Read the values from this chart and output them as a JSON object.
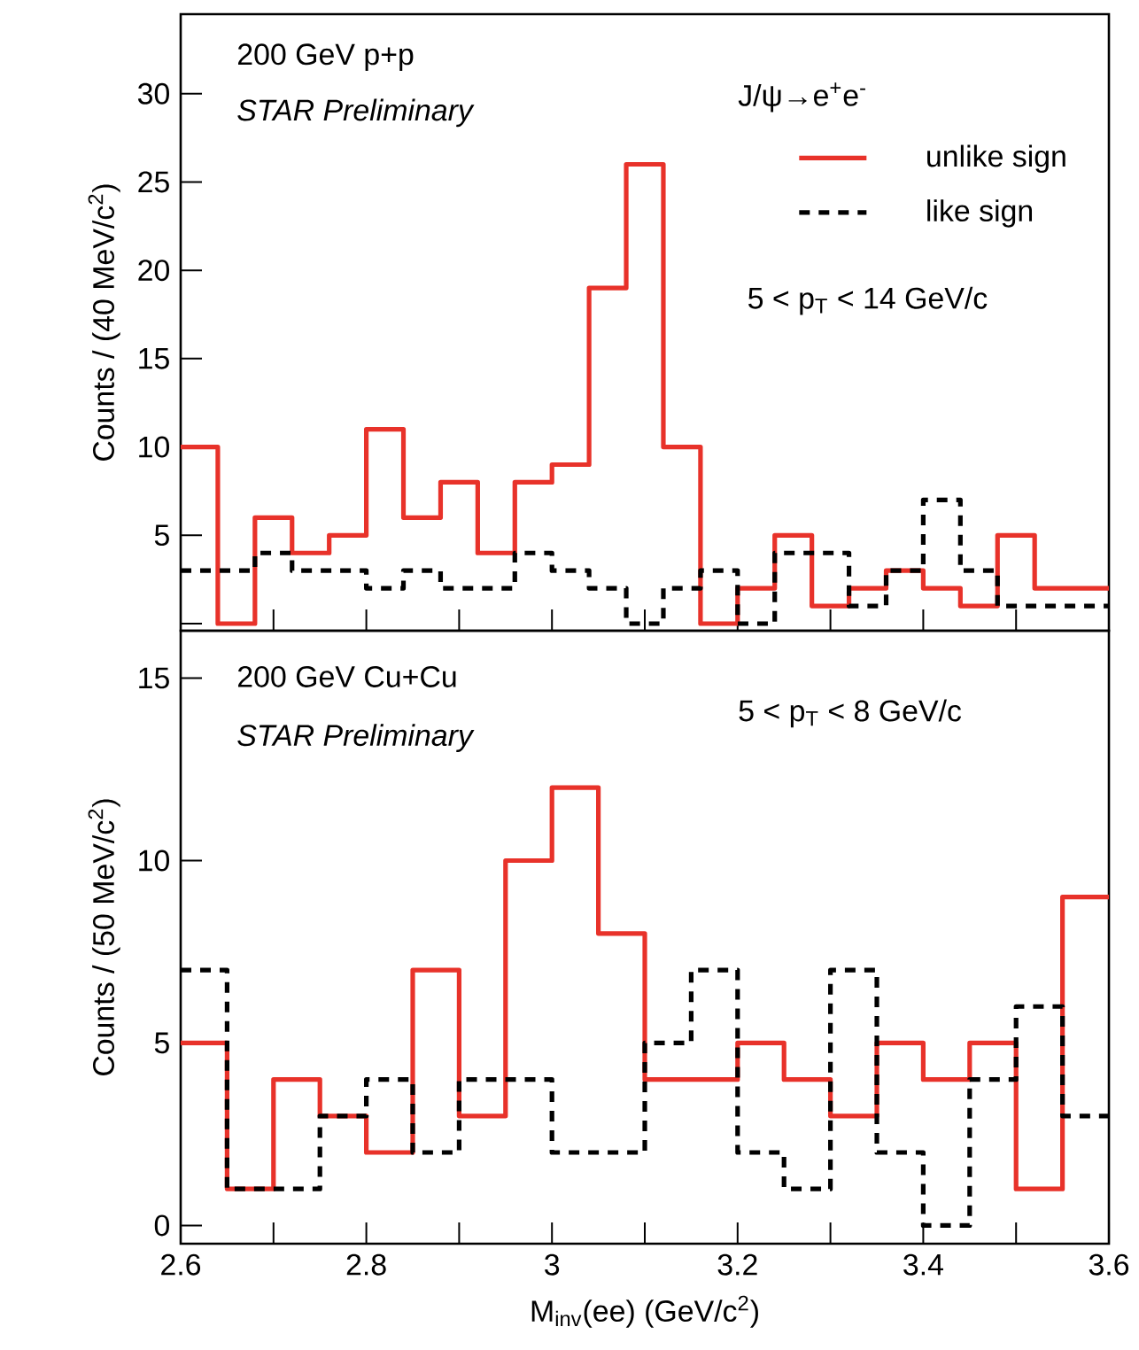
{
  "chart_data": [
    {
      "type": "histogram",
      "ylabel": "Counts / (40 MeV/c$^{2}$)",
      "bins": [
        2.6,
        2.64,
        2.68,
        2.72,
        2.76,
        2.8,
        2.84,
        2.88,
        2.92,
        2.96,
        3.0,
        3.04,
        3.08,
        3.12,
        3.16,
        3.2,
        3.24,
        3.28,
        3.32,
        3.36,
        3.4,
        3.44,
        3.48,
        3.52,
        3.56,
        3.6
      ],
      "series": [
        {
          "name": "unlike sign",
          "color": "#e8322a",
          "line_style": "solid",
          "values": [
            10,
            0,
            6,
            4,
            5,
            11,
            6,
            8,
            4,
            8,
            9,
            19,
            26,
            10,
            0,
            2,
            5,
            1,
            2,
            3,
            2,
            1,
            5,
            2,
            2
          ]
        },
        {
          "name": "like sign",
          "color": "#000000",
          "line_style": "dashed",
          "values": [
            3,
            3,
            4,
            3,
            3,
            2,
            3,
            2,
            2,
            4,
            3,
            2,
            0,
            2,
            3,
            0,
            4,
            4,
            1,
            3,
            7,
            3,
            1,
            1,
            1
          ]
        }
      ],
      "xlim": [
        2.6,
        3.6
      ],
      "ylim": [
        -0.4,
        34.5
      ],
      "xticks": [
        2.6,
        2.7,
        2.8,
        2.9,
        3.0,
        3.1,
        3.2,
        3.3,
        3.4,
        3.5,
        3.6
      ],
      "yticks": [
        {
          "value": 0,
          "label": null
        },
        5,
        10,
        15,
        20,
        25,
        30
      ],
      "tick_labels": "y",
      "legend": "top right",
      "annotations": [
        "200 GeV p+p",
        "STAR Preliminary",
        "J/ψ→e$^{+}$e$^{-}$",
        "5 < p$_{T}$ < 14 GeV/c"
      ]
    },
    {
      "type": "histogram",
      "xlabel": "M$_{inv}$(ee) (GeV/c$^{2}$)",
      "ylabel": "Counts / (50 MeV/c$^{2}$)",
      "bins": [
        2.6,
        2.65,
        2.7,
        2.75,
        2.8,
        2.85,
        2.9,
        2.95,
        3.0,
        3.05,
        3.1,
        3.15,
        3.2,
        3.25,
        3.3,
        3.35,
        3.4,
        3.45,
        3.5,
        3.55,
        3.6
      ],
      "series": [
        {
          "color": "#e8322a",
          "line_style": "solid",
          "values": [
            5,
            1,
            4,
            3,
            2,
            7,
            3,
            10,
            12,
            8,
            4,
            4,
            5,
            4,
            3,
            5,
            4,
            5,
            1,
            9
          ]
        },
        {
          "color": "#000000",
          "line_style": "dashed",
          "values": [
            7,
            1,
            1,
            3,
            4,
            2,
            4,
            4,
            2,
            2,
            5,
            7,
            2,
            1,
            7,
            2,
            0,
            4,
            6,
            3
          ]
        }
      ],
      "xlim": [
        2.6,
        3.6
      ],
      "ylim": [
        -0.5,
        16.3
      ],
      "xticks": [
        2.6,
        {
          "value": 2.7,
          "label": null
        },
        2.8,
        {
          "value": 2.9,
          "label": null
        },
        3,
        {
          "value": 3.1,
          "label": null
        },
        3.2,
        {
          "value": 3.3,
          "label": null
        },
        3.4,
        {
          "value": 3.5,
          "label": null
        },
        3.6
      ],
      "yticks": [
        0,
        5,
        10,
        15
      ],
      "annotations": [
        "200 GeV Cu+Cu",
        "STAR Preliminary",
        "5 < p$_{T}$ < 8 GeV/c"
      ]
    }
  ]
}
